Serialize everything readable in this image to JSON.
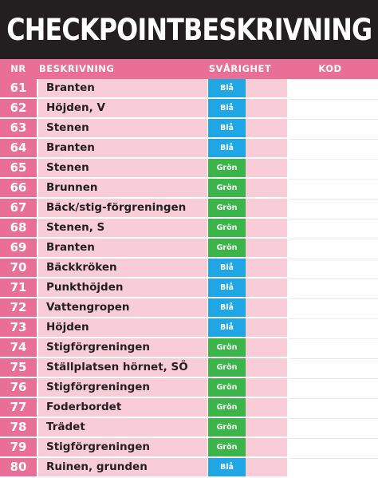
{
  "title": "CHECKPOINTBESKRIVNING",
  "columns": {
    "nr": "NR",
    "description": "BESKRIVNING",
    "difficulty": "SVÅRIGHET",
    "code": "KOD"
  },
  "colors": {
    "header_bg": "#231f20",
    "accent_pink": "#ea6f97",
    "light_pink": "#f8cdd8",
    "blue": "#1ea7e4",
    "green": "#3bb54a"
  },
  "rows": [
    {
      "nr": "61",
      "description": "Branten",
      "difficulty": "Blå",
      "color": "blue",
      "code": ""
    },
    {
      "nr": "62",
      "description": "Höjden, V",
      "difficulty": "Blå",
      "color": "blue",
      "code": ""
    },
    {
      "nr": "63",
      "description": "Stenen",
      "difficulty": "Blå",
      "color": "blue",
      "code": ""
    },
    {
      "nr": "64",
      "description": "Branten",
      "difficulty": "Blå",
      "color": "blue",
      "code": ""
    },
    {
      "nr": "65",
      "description": "Stenen",
      "difficulty": "Grön",
      "color": "green",
      "code": ""
    },
    {
      "nr": "66",
      "description": "Brunnen",
      "difficulty": "Grön",
      "color": "green",
      "code": ""
    },
    {
      "nr": "67",
      "description": "Bäck/stig-förgreningen",
      "difficulty": "Grön",
      "color": "green",
      "code": ""
    },
    {
      "nr": "68",
      "description": "Stenen, S",
      "difficulty": "Grön",
      "color": "green",
      "code": ""
    },
    {
      "nr": "69",
      "description": "Branten",
      "difficulty": "Grön",
      "color": "green",
      "code": ""
    },
    {
      "nr": "70",
      "description": "Bäckkröken",
      "difficulty": "Blå",
      "color": "blue",
      "code": ""
    },
    {
      "nr": "71",
      "description": "Punkthöjden",
      "difficulty": "Blå",
      "color": "blue",
      "code": ""
    },
    {
      "nr": "72",
      "description": "Vattengropen",
      "difficulty": "Blå",
      "color": "blue",
      "code": ""
    },
    {
      "nr": "73",
      "description": "Höjden",
      "difficulty": "Blå",
      "color": "blue",
      "code": ""
    },
    {
      "nr": "74",
      "description": "Stigförgreningen",
      "difficulty": "Grön",
      "color": "green",
      "code": ""
    },
    {
      "nr": "75",
      "description": "Ställplatsen hörnet, SÖ",
      "difficulty": "Grön",
      "color": "green",
      "code": ""
    },
    {
      "nr": "76",
      "description": "Stigförgreningen",
      "difficulty": "Grön",
      "color": "green",
      "code": ""
    },
    {
      "nr": "77",
      "description": "Foderbordet",
      "difficulty": "Grön",
      "color": "green",
      "code": ""
    },
    {
      "nr": "78",
      "description": "Trädet",
      "difficulty": "Grön",
      "color": "green",
      "code": ""
    },
    {
      "nr": "79",
      "description": "Stigförgreningen",
      "difficulty": "Grön",
      "color": "green",
      "code": ""
    },
    {
      "nr": "80",
      "description": "Ruinen, grunden",
      "difficulty": "Blå",
      "color": "blue",
      "code": ""
    }
  ]
}
